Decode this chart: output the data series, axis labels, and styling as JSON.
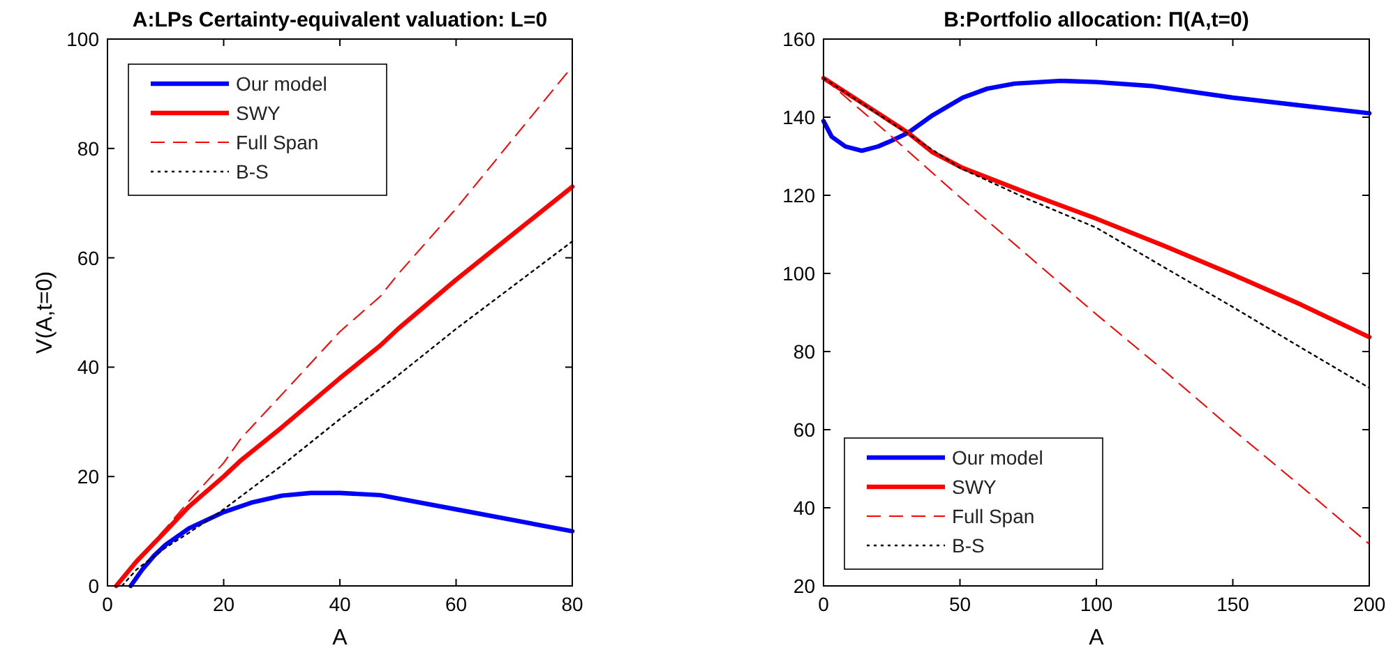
{
  "chart_data": [
    {
      "type": "line",
      "title": "A:LPs Certainty-equivalent valuation: L=0",
      "xlabel": "A",
      "ylabel": "V(A,t=0)",
      "xlim": [
        0,
        80
      ],
      "ylim": [
        0,
        100
      ],
      "xticks": [
        0,
        20,
        40,
        60,
        80
      ],
      "yticks": [
        0,
        20,
        40,
        60,
        80,
        100
      ],
      "grid": false,
      "legend": "top left",
      "series": [
        {
          "name": "Our model",
          "color": "#0000ff",
          "line_style": "solid",
          "x": [
            4,
            6,
            8,
            10,
            14,
            20,
            25,
            30,
            35,
            40,
            47,
            50,
            60,
            70,
            80
          ],
          "values": [
            0,
            3,
            5.5,
            7.5,
            10.5,
            13.5,
            15.3,
            16.5,
            17,
            17,
            16.6,
            16,
            14,
            12,
            10
          ]
        },
        {
          "name": "SWY",
          "color": "#ff0000",
          "line_style": "solid",
          "x": [
            1.5,
            5,
            10,
            14,
            20,
            23,
            30,
            40,
            47,
            50,
            60,
            70,
            80
          ],
          "values": [
            0,
            4.5,
            10,
            14.5,
            20,
            23,
            29,
            38,
            44,
            47,
            56,
            64.5,
            73
          ]
        },
        {
          "name": "Full Span",
          "color": "#ff0000",
          "line_style": "dashed",
          "x": [
            1.5,
            5,
            10,
            14,
            20,
            23,
            30,
            40,
            47,
            50,
            60,
            70,
            80
          ],
          "values": [
            0,
            4.7,
            10.5,
            15.5,
            22.5,
            27,
            35,
            46.5,
            53,
            57,
            69,
            82,
            95
          ]
        },
        {
          "name": "B-S",
          "color": "#000000",
          "line_style": "dotted",
          "x": [
            2.5,
            5,
            10,
            14,
            20,
            30,
            40,
            50,
            60,
            70,
            80
          ],
          "values": [
            0,
            3,
            7,
            9.7,
            14,
            22,
            30.5,
            38.5,
            47,
            55,
            63
          ]
        }
      ]
    },
    {
      "type": "line",
      "title": "B:Portfolio allocation: Π(A,t=0)",
      "xlabel": "A",
      "xlim": [
        0,
        200
      ],
      "ylim": [
        20,
        160
      ],
      "xticks": [
        0,
        50,
        100,
        150,
        200
      ],
      "yticks": [
        20,
        40,
        60,
        80,
        100,
        120,
        140,
        160
      ],
      "grid": false,
      "legend": "bottom left",
      "series": [
        {
          "name": "Our model",
          "color": "#0000ff",
          "line_style": "solid",
          "x": [
            0,
            3,
            8,
            14,
            20,
            25,
            31,
            40,
            51,
            60,
            70,
            87,
            100,
            120,
            150,
            175,
            200
          ],
          "values": [
            139,
            135,
            132.5,
            131.4,
            132.5,
            134,
            136,
            140.5,
            145,
            147.3,
            148.6,
            149.3,
            149,
            148,
            145,
            143,
            141
          ]
        },
        {
          "name": "SWY",
          "color": "#ff0000",
          "line_style": "solid",
          "x": [
            0,
            10,
            20,
            31,
            40,
            51,
            75,
            100,
            125,
            150,
            175,
            200
          ],
          "values": [
            150,
            145.5,
            141,
            136,
            131,
            127,
            120.5,
            114,
            107,
            99.7,
            92,
            83.7
          ]
        },
        {
          "name": "Full Span",
          "color": "#ff0000",
          "line_style": "dashed",
          "x": [
            0,
            25,
            50,
            75,
            100,
            125,
            150,
            175,
            200
          ],
          "values": [
            150,
            135,
            119.5,
            104.5,
            89.5,
            75,
            60,
            45.5,
            30.7
          ]
        },
        {
          "name": "B-S",
          "color": "#000000",
          "line_style": "dotted",
          "x": [
            0,
            25,
            50,
            75,
            100,
            125,
            150,
            175,
            200
          ],
          "values": [
            150,
            138.5,
            127,
            119,
            111.7,
            101.5,
            91.4,
            81,
            70.7
          ]
        }
      ]
    }
  ]
}
